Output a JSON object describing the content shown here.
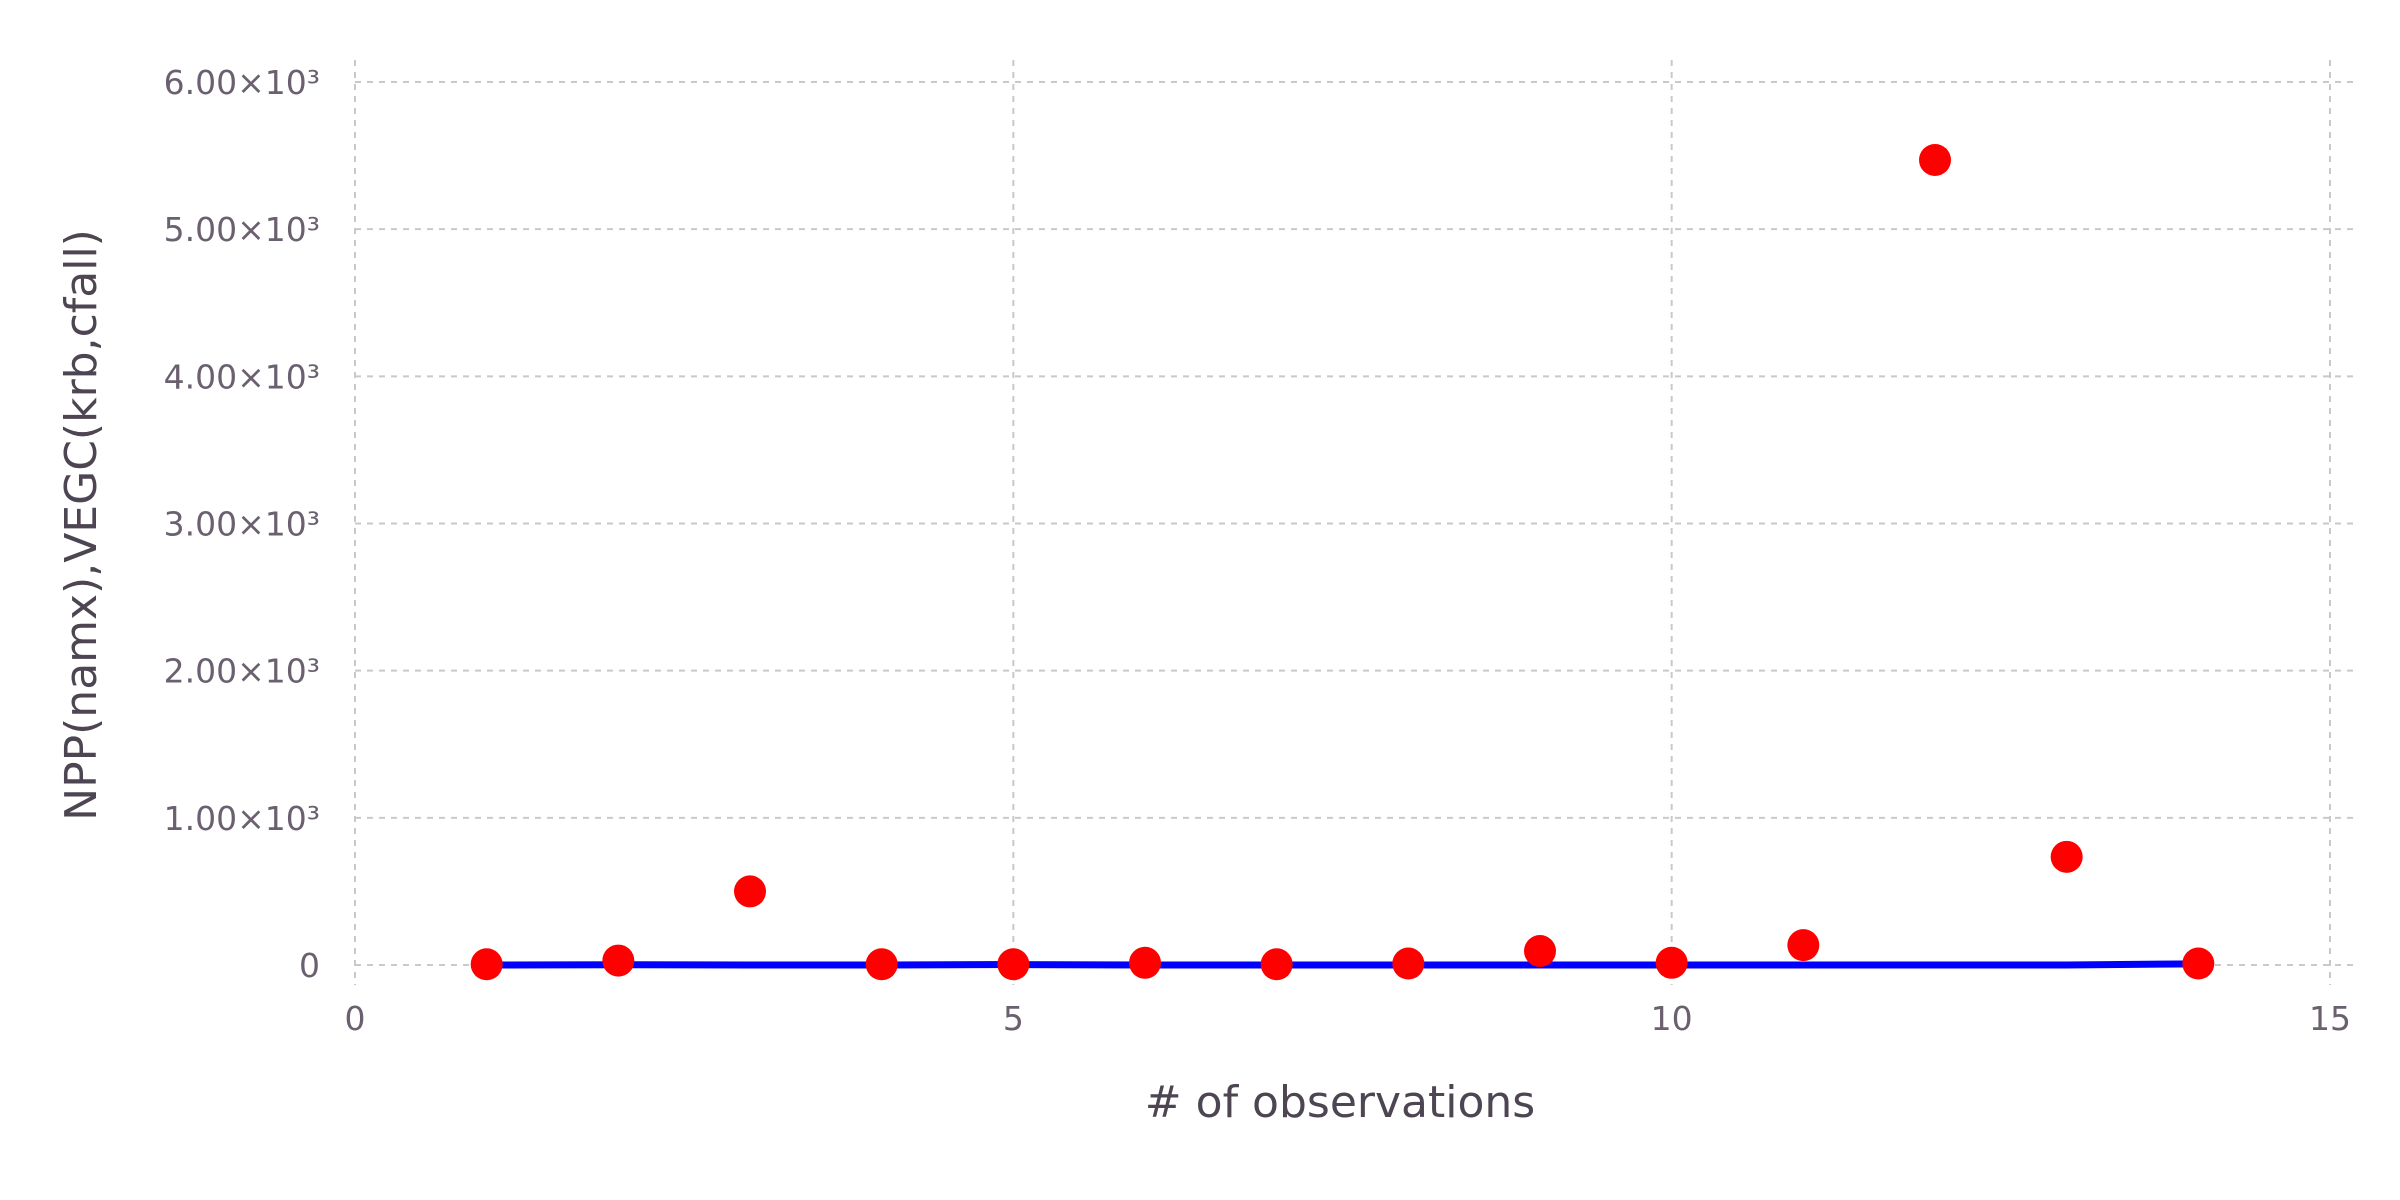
{
  "chart_data": {
    "type": "scatter",
    "title": "",
    "xlabel": "# of observations",
    "ylabel": "NPP(namx),VEGC(krb,cfall)",
    "xlim": [
      0,
      15
    ],
    "ylim": [
      -50,
      6100
    ],
    "x_ticks": [
      {
        "value": 0,
        "label": "0"
      },
      {
        "value": 5,
        "label": "5"
      },
      {
        "value": 10,
        "label": "10"
      },
      {
        "value": 15,
        "label": "15"
      }
    ],
    "y_ticks": [
      {
        "value": 0,
        "label": "0"
      },
      {
        "value": 1000,
        "label": "1.00×10³"
      },
      {
        "value": 2000,
        "label": "2.00×10³"
      },
      {
        "value": 3000,
        "label": "3.00×10³"
      },
      {
        "value": 4000,
        "label": "4.00×10³"
      },
      {
        "value": 5000,
        "label": "5.00×10³"
      },
      {
        "value": 6000,
        "label": "6.00×10³"
      }
    ],
    "grid": true,
    "series": [
      {
        "kind": "line",
        "color": "#0000ff",
        "x": [
          1,
          2,
          3,
          4,
          5,
          6,
          7,
          8,
          9,
          10,
          11,
          12,
          13,
          14
        ],
        "y": [
          0,
          2,
          0,
          0,
          3,
          0,
          0,
          0,
          0,
          0,
          0,
          0,
          0,
          8
        ]
      },
      {
        "kind": "scatter",
        "color": "#ff0000",
        "x": [
          1,
          2,
          3,
          4,
          5,
          6,
          7,
          8,
          9,
          10,
          11,
          12,
          13,
          14
        ],
        "y": [
          5,
          30,
          500,
          5,
          5,
          15,
          5,
          10,
          95,
          15,
          135,
          5470,
          735,
          10
        ]
      }
    ]
  }
}
